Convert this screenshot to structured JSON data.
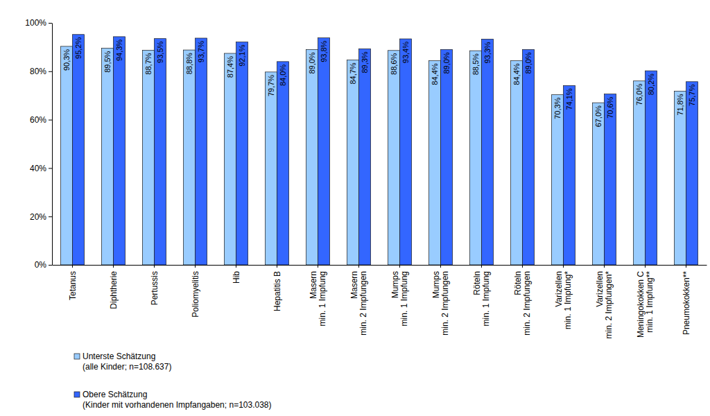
{
  "chart_data": {
    "type": "bar",
    "categories": [
      "Tetanus",
      "Diphtherie",
      "Pertussis",
      "Poliomyelitis",
      "Hib",
      "Hepatitis B",
      "Masern\nmin. 1 Impfung",
      "Masern\nmin. 2 Impfungen",
      "Mumps\nmin. 1 Impfung",
      "Mumps\nmin. 2 Impfungen",
      "Röteln\nmin. 1 Impfung",
      "Röteln\nmin. 2 Impfungen",
      "Varizellen\nmin. 1 Impfung*",
      "Varizellen\nmin. 2 Impfungen*",
      "Meningokokken C\nmin. 1 Impfung**",
      "Pneumokokken**"
    ],
    "series": [
      {
        "name": "Unterste Schätzung\n(alle Kinder; n=108.637)",
        "color": "#99ccff",
        "values": [
          90.3,
          89.5,
          88.7,
          88.8,
          87.4,
          79.7,
          89.0,
          84.7,
          88.6,
          84.4,
          88.5,
          84.4,
          70.3,
          67.0,
          76.0,
          71.8
        ],
        "value_labels": [
          "90,3%",
          "89,5%",
          "88,7%",
          "88,8%",
          "87,4%",
          "79,7%",
          "89,0%",
          "84,7%",
          "88,6%",
          "84,4%",
          "88,5%",
          "84,4%",
          "70,3%",
          "67,0%",
          "76,0%",
          "71,8%"
        ]
      },
      {
        "name": "Obere Schätzung\n(Kinder mit vorhandenen Impfangaben; n=103.038)",
        "color": "#3366ff",
        "values": [
          95.2,
          94.3,
          93.5,
          93.7,
          92.1,
          84.0,
          93.8,
          89.3,
          93.4,
          89.0,
          93.3,
          89.0,
          74.1,
          70.6,
          80.2,
          75.7
        ],
        "value_labels": [
          "95,2%",
          "94,3%",
          "93,5%",
          "93,7%",
          "92,1%",
          "84,0%",
          "93,8%",
          "89,3%",
          "93,4%",
          "89,0%",
          "93,3%",
          "89,0%",
          "74,1%",
          "70,6%",
          "80,2%",
          "75,7%"
        ]
      }
    ],
    "ylim": [
      0,
      100
    ],
    "yticks": [
      {
        "value": 0,
        "label": "0%"
      },
      {
        "value": 20,
        "label": "20%"
      },
      {
        "value": 40,
        "label": "40%"
      },
      {
        "value": 60,
        "label": "60%"
      },
      {
        "value": 80,
        "label": "80%"
      },
      {
        "value": 100,
        "label": "100%"
      }
    ],
    "grid": false,
    "legend": "bottom",
    "data_labels": true
  }
}
